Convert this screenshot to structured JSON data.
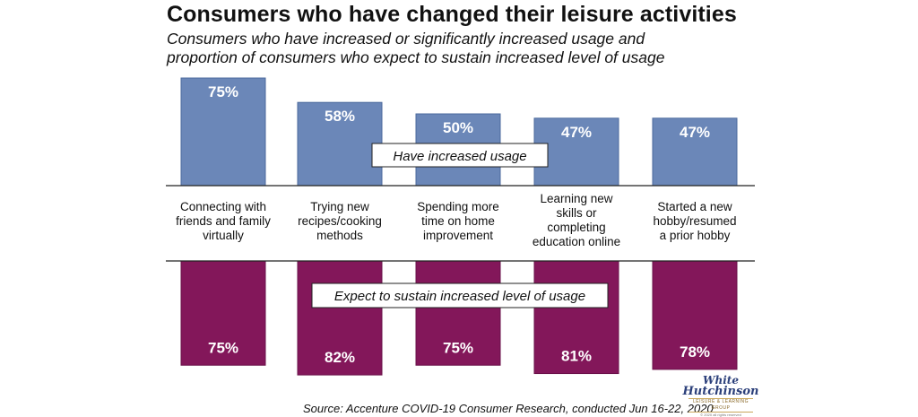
{
  "header": {
    "title": "Consumers who have changed their leisure activities",
    "subtitle_line1": "Consumers who have increased or significantly increased usage and",
    "subtitle_line2": "proportion of consumers who expect to sustain increased level of usage"
  },
  "chart_data": {
    "type": "bar",
    "title": "Consumers who have changed their leisure activities",
    "categories": [
      [
        "Connecting with",
        "friends and family",
        "virtually"
      ],
      [
        "Trying new",
        "recipes/cooking",
        "methods"
      ],
      [
        "Spending more",
        "time on home",
        "improvement"
      ],
      [
        "Learning new",
        "skills or",
        "completing",
        "education online"
      ],
      [
        "Started a new",
        "hobby/resumed",
        "a prior hobby"
      ]
    ],
    "series": [
      {
        "name": "Have increased usage",
        "values": [
          75,
          58,
          50,
          47,
          47
        ],
        "labels": [
          "75%",
          "58%",
          "50%",
          "47%",
          "47%"
        ],
        "color": "#6b87b8",
        "position": "above"
      },
      {
        "name": "Expect to sustain increased level of usage",
        "values": [
          75,
          82,
          75,
          81,
          78
        ],
        "labels": [
          "75%",
          "82%",
          "75%",
          "81%",
          "78%"
        ],
        "color": "#83175a",
        "position": "below"
      }
    ],
    "xlabel": "",
    "ylabel": "",
    "ylim": [
      0,
      100
    ],
    "grid": false,
    "legend": "inline labels"
  },
  "footer": {
    "source": "Source: Accenture COVID-19 Consumer Research, conducted Jun 16-22, 2020"
  },
  "logo": {
    "line1": "White",
    "line2": "Hutchinson",
    "line3": "LEISURE & LEARNING GROUP",
    "line4": "© 2020 all rights reserved"
  }
}
